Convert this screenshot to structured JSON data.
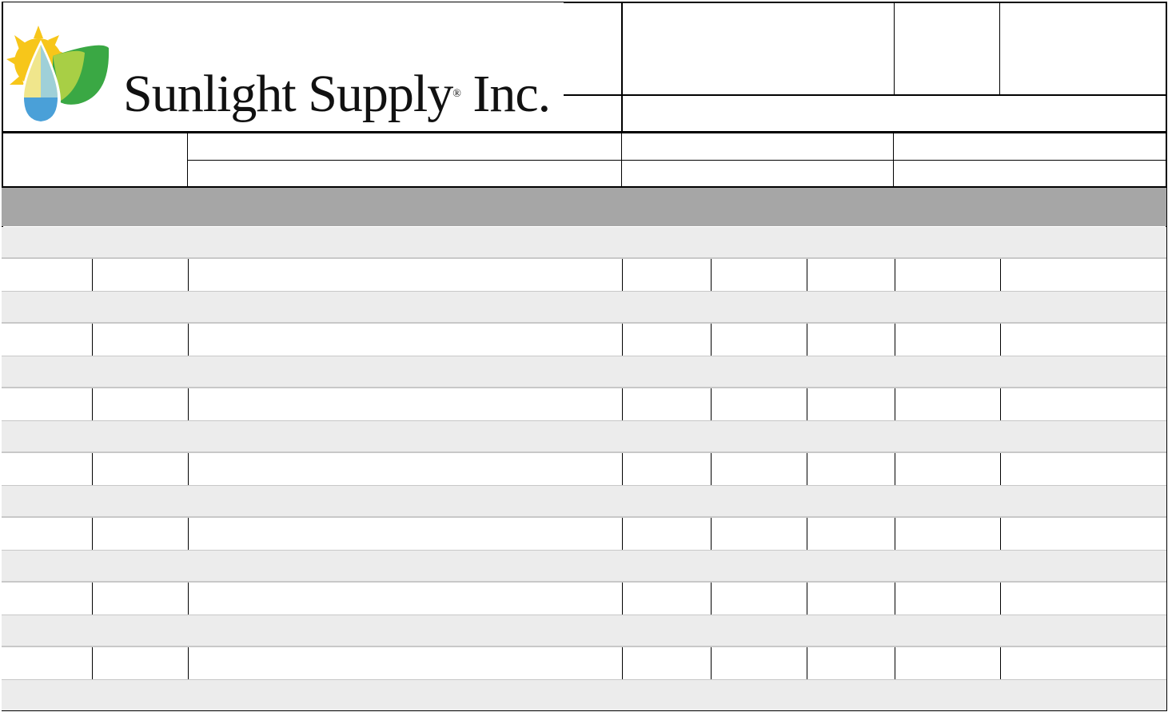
{
  "header": {
    "logo": {
      "company_name": "Sunlight Supply",
      "registered_mark": "®",
      "suffix": "Inc.",
      "colors": {
        "sun": "#f7c61a",
        "drop_top": "#f0e68c",
        "drop_bottom": "#4aa0d8",
        "leaf": "#3aa844",
        "leaf_light": "#a8cf45"
      }
    }
  },
  "colors": {
    "section_band": "#a6a6a6",
    "shaded_row": "#ececec",
    "row_rule": "#c8c8c8",
    "border": "#000000"
  },
  "table": {
    "row_pairs": 7
  }
}
